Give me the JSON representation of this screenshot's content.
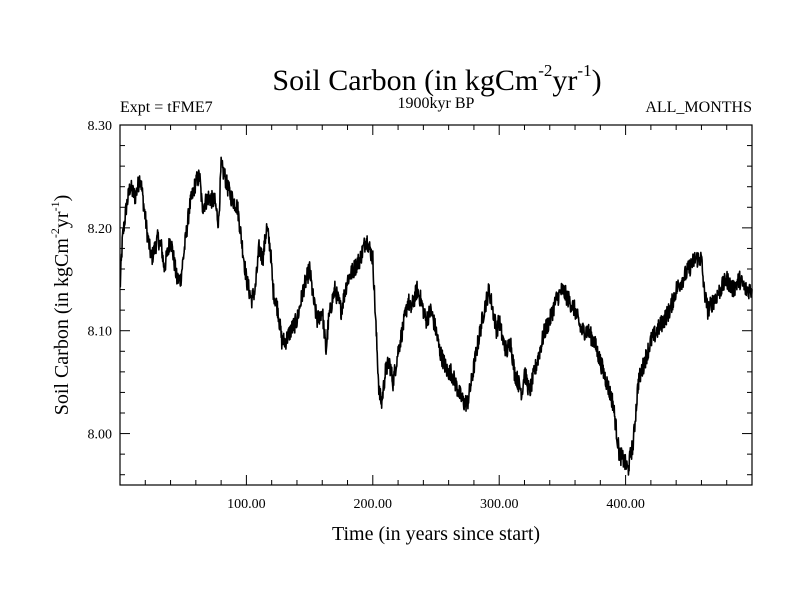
{
  "chart_data": {
    "type": "line",
    "title": {
      "text": "Soil Carbon (in kgCm",
      "sup1": "-2",
      "mid": "yr",
      "sup2": "-1",
      "end": ")"
    },
    "subtitle_left": "Expt = tFME7",
    "subtitle_center": "1900kyr BP",
    "subtitle_right": "ALL_MONTHS",
    "xlabel": "Time (in years since start)",
    "ylabel": {
      "text": "Soil Carbon (in kgCm",
      "sup1": "-2",
      "mid": "yr",
      "sup2": "-1",
      "end": ")"
    },
    "xlim": [
      0,
      500
    ],
    "ylim": [
      7.95,
      8.3
    ],
    "xticks": [
      100,
      200,
      300,
      400
    ],
    "xtick_labels": [
      "100.00",
      "200.00",
      "300.00",
      "400.00"
    ],
    "yticks": [
      8.0,
      8.1,
      8.2,
      8.3
    ],
    "ytick_labels": [
      "8.00",
      "8.10",
      "8.20",
      "8.30"
    ],
    "grid": false,
    "series": [
      {
        "name": "Soil Carbon",
        "color": "#000000",
        "noise_amplitude": 0.009,
        "x": [
          0,
          2,
          5,
          8,
          12,
          16,
          18,
          22,
          25,
          30,
          33,
          35,
          40,
          45,
          48,
          50,
          55,
          60,
          63,
          65,
          70,
          75,
          78,
          80,
          83,
          85,
          88,
          93,
          95,
          100,
          104,
          107,
          110,
          113,
          116,
          119,
          121,
          125,
          128,
          131,
          135,
          140,
          145,
          150,
          153,
          156,
          160,
          163,
          165,
          168,
          170,
          175,
          180,
          185,
          190,
          195,
          200,
          203,
          205,
          207,
          210,
          213,
          216,
          220,
          225,
          228,
          230,
          235,
          238,
          242,
          246,
          250,
          253,
          256,
          259,
          262,
          265,
          268,
          272,
          275,
          278,
          282,
          285,
          288,
          292,
          295,
          298,
          300,
          303,
          306,
          309,
          312,
          315,
          318,
          320,
          324,
          328,
          332,
          336,
          340,
          345,
          350,
          355,
          360,
          365,
          370,
          375,
          380,
          385,
          390,
          393,
          395,
          398,
          400,
          402,
          404,
          406,
          408,
          410,
          415,
          420,
          425,
          430,
          435,
          440,
          445,
          450,
          455,
          460,
          462,
          465,
          470,
          475,
          480,
          485,
          490,
          495,
          500
        ],
        "values": [
          8.14,
          8.19,
          8.22,
          8.24,
          8.23,
          8.25,
          8.23,
          8.19,
          8.17,
          8.19,
          8.18,
          8.16,
          8.19,
          8.15,
          8.15,
          8.17,
          8.22,
          8.245,
          8.25,
          8.22,
          8.23,
          8.225,
          8.205,
          8.26,
          8.25,
          8.24,
          8.23,
          8.22,
          8.2,
          8.15,
          8.13,
          8.14,
          8.18,
          8.17,
          8.2,
          8.18,
          8.14,
          8.12,
          8.09,
          8.09,
          8.1,
          8.11,
          8.14,
          8.16,
          8.13,
          8.11,
          8.12,
          8.08,
          8.11,
          8.13,
          8.14,
          8.12,
          8.15,
          8.16,
          8.17,
          8.19,
          8.17,
          8.09,
          8.04,
          8.03,
          8.06,
          8.07,
          8.05,
          8.08,
          8.11,
          8.13,
          8.12,
          8.14,
          8.13,
          8.11,
          8.12,
          8.1,
          8.08,
          8.07,
          8.06,
          8.06,
          8.05,
          8.04,
          8.03,
          8.03,
          8.05,
          8.08,
          8.1,
          8.12,
          8.14,
          8.12,
          8.1,
          8.11,
          8.09,
          8.08,
          8.09,
          8.06,
          8.05,
          8.04,
          8.06,
          8.04,
          8.06,
          8.08,
          8.1,
          8.11,
          8.13,
          8.14,
          8.13,
          8.12,
          8.1,
          8.1,
          8.09,
          8.07,
          8.05,
          8.03,
          8.0,
          7.98,
          7.975,
          7.97,
          7.965,
          7.98,
          7.99,
          8.02,
          8.05,
          8.07,
          8.09,
          8.1,
          8.11,
          8.12,
          8.14,
          8.15,
          8.16,
          8.17,
          8.17,
          8.14,
          8.12,
          8.13,
          8.14,
          8.15,
          8.14,
          8.15,
          8.14,
          8.14
        ]
      }
    ]
  }
}
